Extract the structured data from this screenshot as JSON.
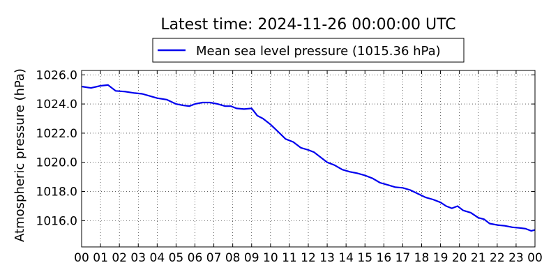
{
  "chart_data": {
    "type": "line",
    "title": "Latest time: 2024-11-26 00:00:00 UTC",
    "xlabel": "",
    "ylabel": "Atmospheric pressure (hPa)",
    "x_ticks": [
      "00",
      "01",
      "02",
      "03",
      "04",
      "05",
      "06",
      "07",
      "08",
      "09",
      "10",
      "11",
      "12",
      "13",
      "14",
      "15",
      "16",
      "17",
      "18",
      "19",
      "20",
      "21",
      "22",
      "23",
      "00"
    ],
    "xlim": [
      0,
      24
    ],
    "ylim": [
      1014.2,
      1026.3
    ],
    "y_ticks": [
      1016.0,
      1018.0,
      1020.0,
      1022.0,
      1024.0,
      1026.0
    ],
    "y_tick_labels": [
      "1016.0",
      "1018.0",
      "1020.0",
      "1022.0",
      "1024.0",
      "1026.0"
    ],
    "grid": true,
    "legend_position": "top-center",
    "series": [
      {
        "name": "Mean sea level pressure (1015.36 hPa)",
        "color": "#0000ee",
        "x": [
          0,
          0.5,
          1,
          1.4,
          1.8,
          2.3,
          2.8,
          3.2,
          3.6,
          4.0,
          4.5,
          5.0,
          5.4,
          5.7,
          6.0,
          6.4,
          6.8,
          7.2,
          7.6,
          7.9,
          8.2,
          8.6,
          9.0,
          9.3,
          9.6,
          10.0,
          10.4,
          10.8,
          11.2,
          11.6,
          12.0,
          12.3,
          12.7,
          13.0,
          13.4,
          13.8,
          14.2,
          14.6,
          15.0,
          15.4,
          15.8,
          16.2,
          16.6,
          17.0,
          17.4,
          17.8,
          18.2,
          18.6,
          19.0,
          19.3,
          19.6,
          19.9,
          20.2,
          20.6,
          21.0,
          21.3,
          21.6,
          22.0,
          22.4,
          22.8,
          23.2,
          23.5,
          23.8,
          24.0
        ],
        "values": [
          1025.2,
          1025.1,
          1025.25,
          1025.3,
          1024.9,
          1024.85,
          1024.75,
          1024.7,
          1024.55,
          1024.4,
          1024.3,
          1024.0,
          1023.9,
          1023.85,
          1024.0,
          1024.1,
          1024.1,
          1024.0,
          1023.85,
          1023.85,
          1023.7,
          1023.65,
          1023.7,
          1023.2,
          1023.0,
          1022.6,
          1022.1,
          1021.6,
          1021.4,
          1021.0,
          1020.85,
          1020.7,
          1020.3,
          1020.0,
          1019.8,
          1019.5,
          1019.35,
          1019.25,
          1019.1,
          1018.9,
          1018.6,
          1018.45,
          1018.3,
          1018.25,
          1018.1,
          1017.85,
          1017.6,
          1017.45,
          1017.25,
          1017.0,
          1016.85,
          1017.0,
          1016.7,
          1016.55,
          1016.2,
          1016.1,
          1015.8,
          1015.7,
          1015.65,
          1015.55,
          1015.5,
          1015.45,
          1015.3,
          1015.36
        ]
      }
    ]
  }
}
